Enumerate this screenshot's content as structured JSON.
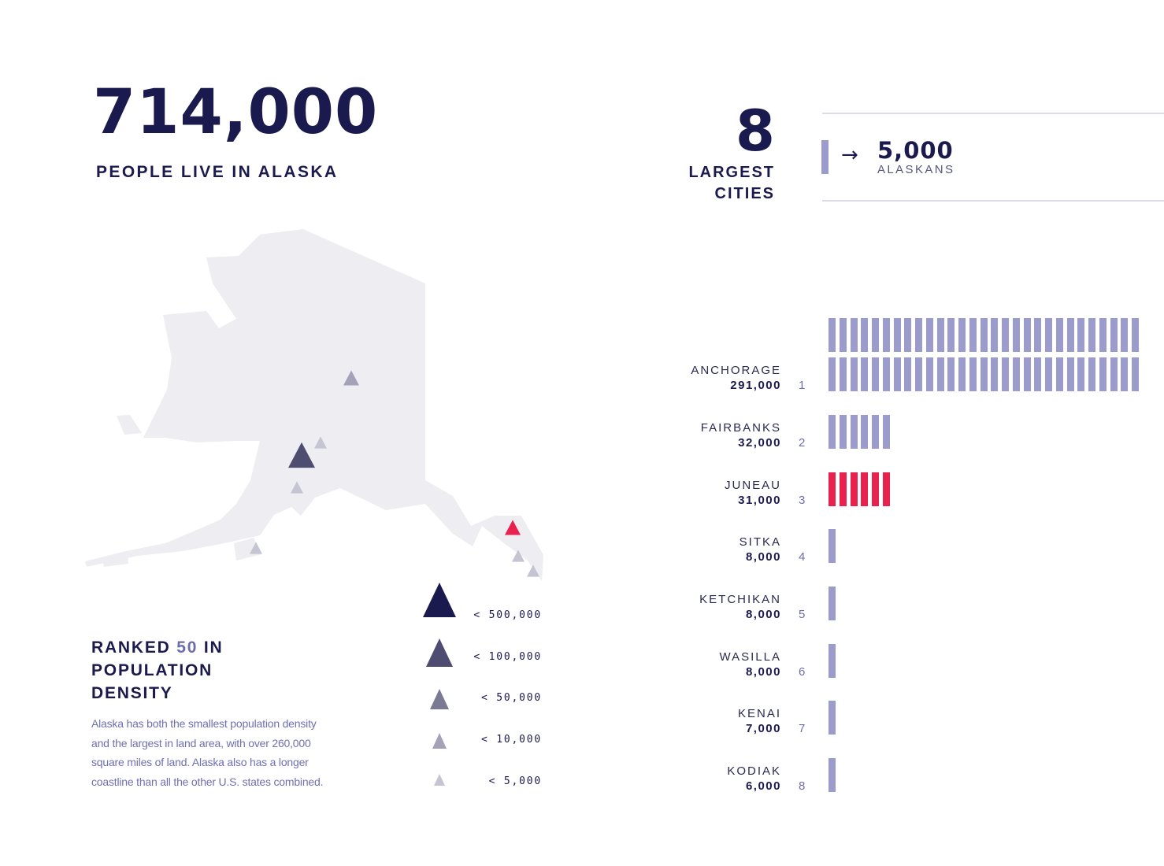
{
  "headline": {
    "value": "714,000",
    "caption": "PEOPLE LIVE IN ALASKA"
  },
  "cities_header": {
    "count": "8",
    "label_line1": "LARGEST",
    "label_line2": "CITIES"
  },
  "unit_legend": {
    "arrow": "→",
    "value": "5,000",
    "label": "ALASKANS"
  },
  "ranking": {
    "prefix": "RANKED ",
    "rank": "50",
    "suffix_line1": " IN",
    "line2": "POPULATION",
    "line3": "DENSITY",
    "body_lines": [
      "Alaska has both the smallest population density",
      "and the  largest in land area, with over 260,000",
      "square miles of land. Alaska also  has a longer",
      "coastline than all the other U.S. states combined."
    ]
  },
  "map": {
    "fill_color": "#ededf2",
    "highlight_color": "#e8214f"
  },
  "size_legend": [
    {
      "label": "< 500,000",
      "color": "#1b1a4e"
    },
    {
      "label": "< 100,000",
      "color": "#4e4c70"
    },
    {
      "label": "< 50,000",
      "color": "#7b7a95"
    },
    {
      "label": "< 10,000",
      "color": "#a3a2b8"
    },
    {
      "label": "< 5,000",
      "color": "#c5c4d3"
    }
  ],
  "colors": {
    "bar": "#9c9ccc",
    "highlight": "#e8214f",
    "navy": "#1b1a4e"
  },
  "chart_data": {
    "type": "bar",
    "title": "8 LARGEST CITIES",
    "unit": "5,000 ALASKANS",
    "categories": [
      "ANCHORAGE",
      "FAIRBANKS",
      "JUNEAU",
      "SITKA",
      "KETCHIKAN",
      "WASILLA",
      "KENAI",
      "KODIAK"
    ],
    "population_labels": [
      "291,000",
      "32,000",
      "31,000",
      "8,000",
      "8,000",
      "8,000",
      "7,000",
      "6,000"
    ],
    "ranks": [
      "1",
      "2",
      "3",
      "4",
      "5",
      "6",
      "7",
      "8"
    ],
    "values": [
      291000,
      32000,
      31000,
      8000,
      8000,
      8000,
      7000,
      6000
    ],
    "unit_counts": [
      58,
      6,
      6,
      1,
      1,
      1,
      1,
      1
    ],
    "highlighted": "JUNEAU"
  }
}
